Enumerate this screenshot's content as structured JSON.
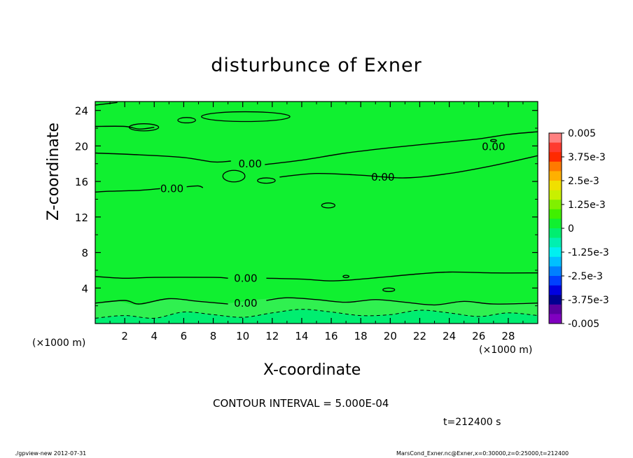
{
  "chart_data": {
    "type": "heatmap",
    "title": "disturbunce of Exner",
    "xlabel": "X-coordinate",
    "ylabel": "Z-coordinate",
    "x_unit_left": "(×1000 m)",
    "x_unit_right": "(×1000 m)",
    "xlim": [
      0,
      30
    ],
    "ylim": [
      0,
      25
    ],
    "x_ticks": [
      2,
      4,
      6,
      8,
      10,
      12,
      14,
      16,
      18,
      20,
      22,
      24,
      26,
      28
    ],
    "y_ticks": [
      4,
      8,
      12,
      16,
      20,
      24
    ],
    "contour_interval_text": "CONTOUR INTERVAL = 5.000E-04",
    "time_text": "t=212400 s",
    "contour_labels": [
      {
        "text": "0.00",
        "x": 10.5,
        "z": 18.0
      },
      {
        "text": "0.00",
        "x": 19.5,
        "z": 16.5
      },
      {
        "text": "0.00",
        "x": 5.2,
        "z": 15.2
      },
      {
        "text": "0.00",
        "x": 27.0,
        "z": 19.9
      },
      {
        "text": "0.00",
        "x": 10.2,
        "z": 5.1
      },
      {
        "text": "0.00",
        "x": 10.2,
        "z": 2.3
      }
    ],
    "colorbar": {
      "labels": [
        "0.005",
        "3.75e-3",
        "2.5e-3",
        "1.25e-3",
        "0",
        "-1.25e-3",
        "-2.5e-3",
        "-3.75e-3",
        "-0.005"
      ],
      "colors": [
        "#ff8080",
        "#ff3b30",
        "#ff2a00",
        "#ff7a00",
        "#ffb000",
        "#f0e000",
        "#c8f000",
        "#80f000",
        "#40f000",
        "#10f030",
        "#00ee70",
        "#00f0b0",
        "#00f0f0",
        "#00c0ff",
        "#0080ff",
        "#0040ff",
        "#0000e0",
        "#000090",
        "#5a00a0",
        "#8000c0"
      ]
    },
    "field": {
      "background": "#10f030",
      "band_low": "#00ee70",
      "band_mid": "#30f050"
    }
  },
  "footer": {
    "left": "./gpview-new   2012-07-31",
    "right": "MarsCond_Exner.nc@Exner,x=0:30000,z=0:25000,t=212400"
  }
}
